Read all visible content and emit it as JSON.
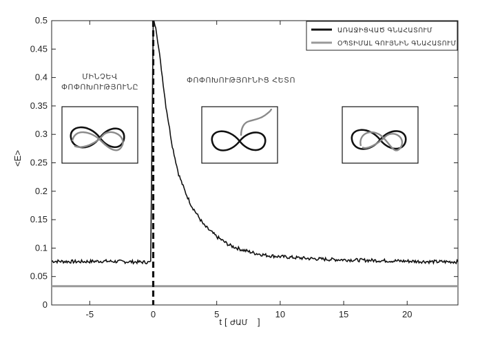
{
  "chart_data": {
    "type": "line",
    "xlabel": "t",
    "xlabel_unit": "ԺԱՄ",
    "ylabel": "<E>",
    "xlim": [
      -8,
      24
    ],
    "ylim": [
      0,
      0.5
    ],
    "xticks": [
      -5,
      0,
      5,
      10,
      15,
      20
    ],
    "yticks": [
      0,
      0.05,
      0.1,
      0.15,
      0.2,
      0.25,
      0.3,
      0.35,
      0.4,
      0.45,
      0.5
    ],
    "grid": false,
    "legend_position": "top-right",
    "vline_x": 0,
    "series": [
      {
        "name": "ԱՌԱՋԻՑՎԱԾ ԳՆԱՀԱՏՈՒՄ",
        "color": "#111111",
        "description": "noisy ~0.075 before t=0, spike to 0.5 at t=0, decays to ~0.075",
        "x": [
          -8,
          -6,
          -4,
          -2,
          -0.2,
          0,
          0.2,
          0.5,
          1,
          1.5,
          2,
          2.5,
          3,
          4,
          5,
          6,
          7,
          8,
          9,
          10,
          12,
          14,
          16,
          18,
          20,
          22,
          24
        ],
        "y": [
          0.077,
          0.076,
          0.077,
          0.076,
          0.075,
          0.5,
          0.49,
          0.44,
          0.35,
          0.28,
          0.23,
          0.2,
          0.175,
          0.14,
          0.12,
          0.105,
          0.097,
          0.091,
          0.087,
          0.085,
          0.082,
          0.08,
          0.079,
          0.078,
          0.077,
          0.076,
          0.076
        ]
      },
      {
        "name": "ՕՊՏԻՄԱԼ ԳՈՒՅՆԻՆ ԳՆԱՀԱՏՈՒՄ",
        "color": "#999999",
        "x": [
          -8,
          24
        ],
        "y": [
          0.033,
          0.033
        ]
      }
    ],
    "annotations": [
      {
        "line1": "ՄԻՆՉԵՎ",
        "line2": "ՓՈՓՈԽՈՒԹՅՈՒՆԸ"
      },
      {
        "line1": "ՓՈՓՈԽՈՒԹՅՈՒՆԻՑ ՀԵՏՈ"
      }
    ]
  }
}
